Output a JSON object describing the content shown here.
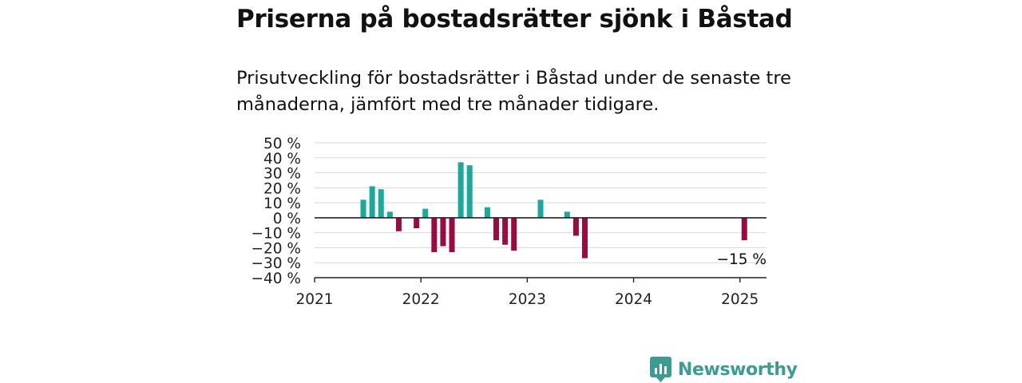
{
  "title": "Priserna på bostadsrätter sjönk i Båstad",
  "subtitle": "Prisutveckling för bostadsrätter i Båstad under de senaste tre månaderna, jämfört med tre månader tidigare.",
  "brand": {
    "name": "Newsworthy",
    "icon": "newsworthy-logo-icon"
  },
  "colors": {
    "positive": "#1aa99a",
    "negative": "#9b0b3f",
    "grid": "#d9d9d9",
    "axis": "#222222"
  },
  "chart_data": {
    "type": "bar",
    "ylim": [
      -40,
      50
    ],
    "yticks": [
      50,
      40,
      30,
      20,
      10,
      0,
      -10,
      -20,
      -30,
      -40
    ],
    "ytick_labels": [
      "50 %",
      "40 %",
      "30 %",
      "20 %",
      "10 %",
      "0 %",
      "−10 %",
      "−20 %",
      "−30 %",
      "−40 %"
    ],
    "xlim": [
      "2021-01",
      "2025-04"
    ],
    "xticks": [
      "2021",
      "2022",
      "2023",
      "2024",
      "2025"
    ],
    "grid": true,
    "points": [
      {
        "x": "2021-06",
        "y": 12
      },
      {
        "x": "2021-07",
        "y": 21
      },
      {
        "x": "2021-08",
        "y": 19
      },
      {
        "x": "2021-09",
        "y": 4
      },
      {
        "x": "2021-10",
        "y": -9
      },
      {
        "x": "2021-12",
        "y": -7
      },
      {
        "x": "2022-01",
        "y": 6
      },
      {
        "x": "2022-02",
        "y": -23
      },
      {
        "x": "2022-03",
        "y": -19
      },
      {
        "x": "2022-04",
        "y": -23
      },
      {
        "x": "2022-05",
        "y": 37
      },
      {
        "x": "2022-06",
        "y": 35
      },
      {
        "x": "2022-08",
        "y": 7
      },
      {
        "x": "2022-09",
        "y": -15
      },
      {
        "x": "2022-10",
        "y": -18
      },
      {
        "x": "2022-11",
        "y": -22
      },
      {
        "x": "2023-02",
        "y": 12
      },
      {
        "x": "2023-05",
        "y": 4
      },
      {
        "x": "2023-06",
        "y": -12
      },
      {
        "x": "2023-07",
        "y": -27
      },
      {
        "x": "2025-01",
        "y": -15
      }
    ],
    "annotation": "−15 %"
  }
}
